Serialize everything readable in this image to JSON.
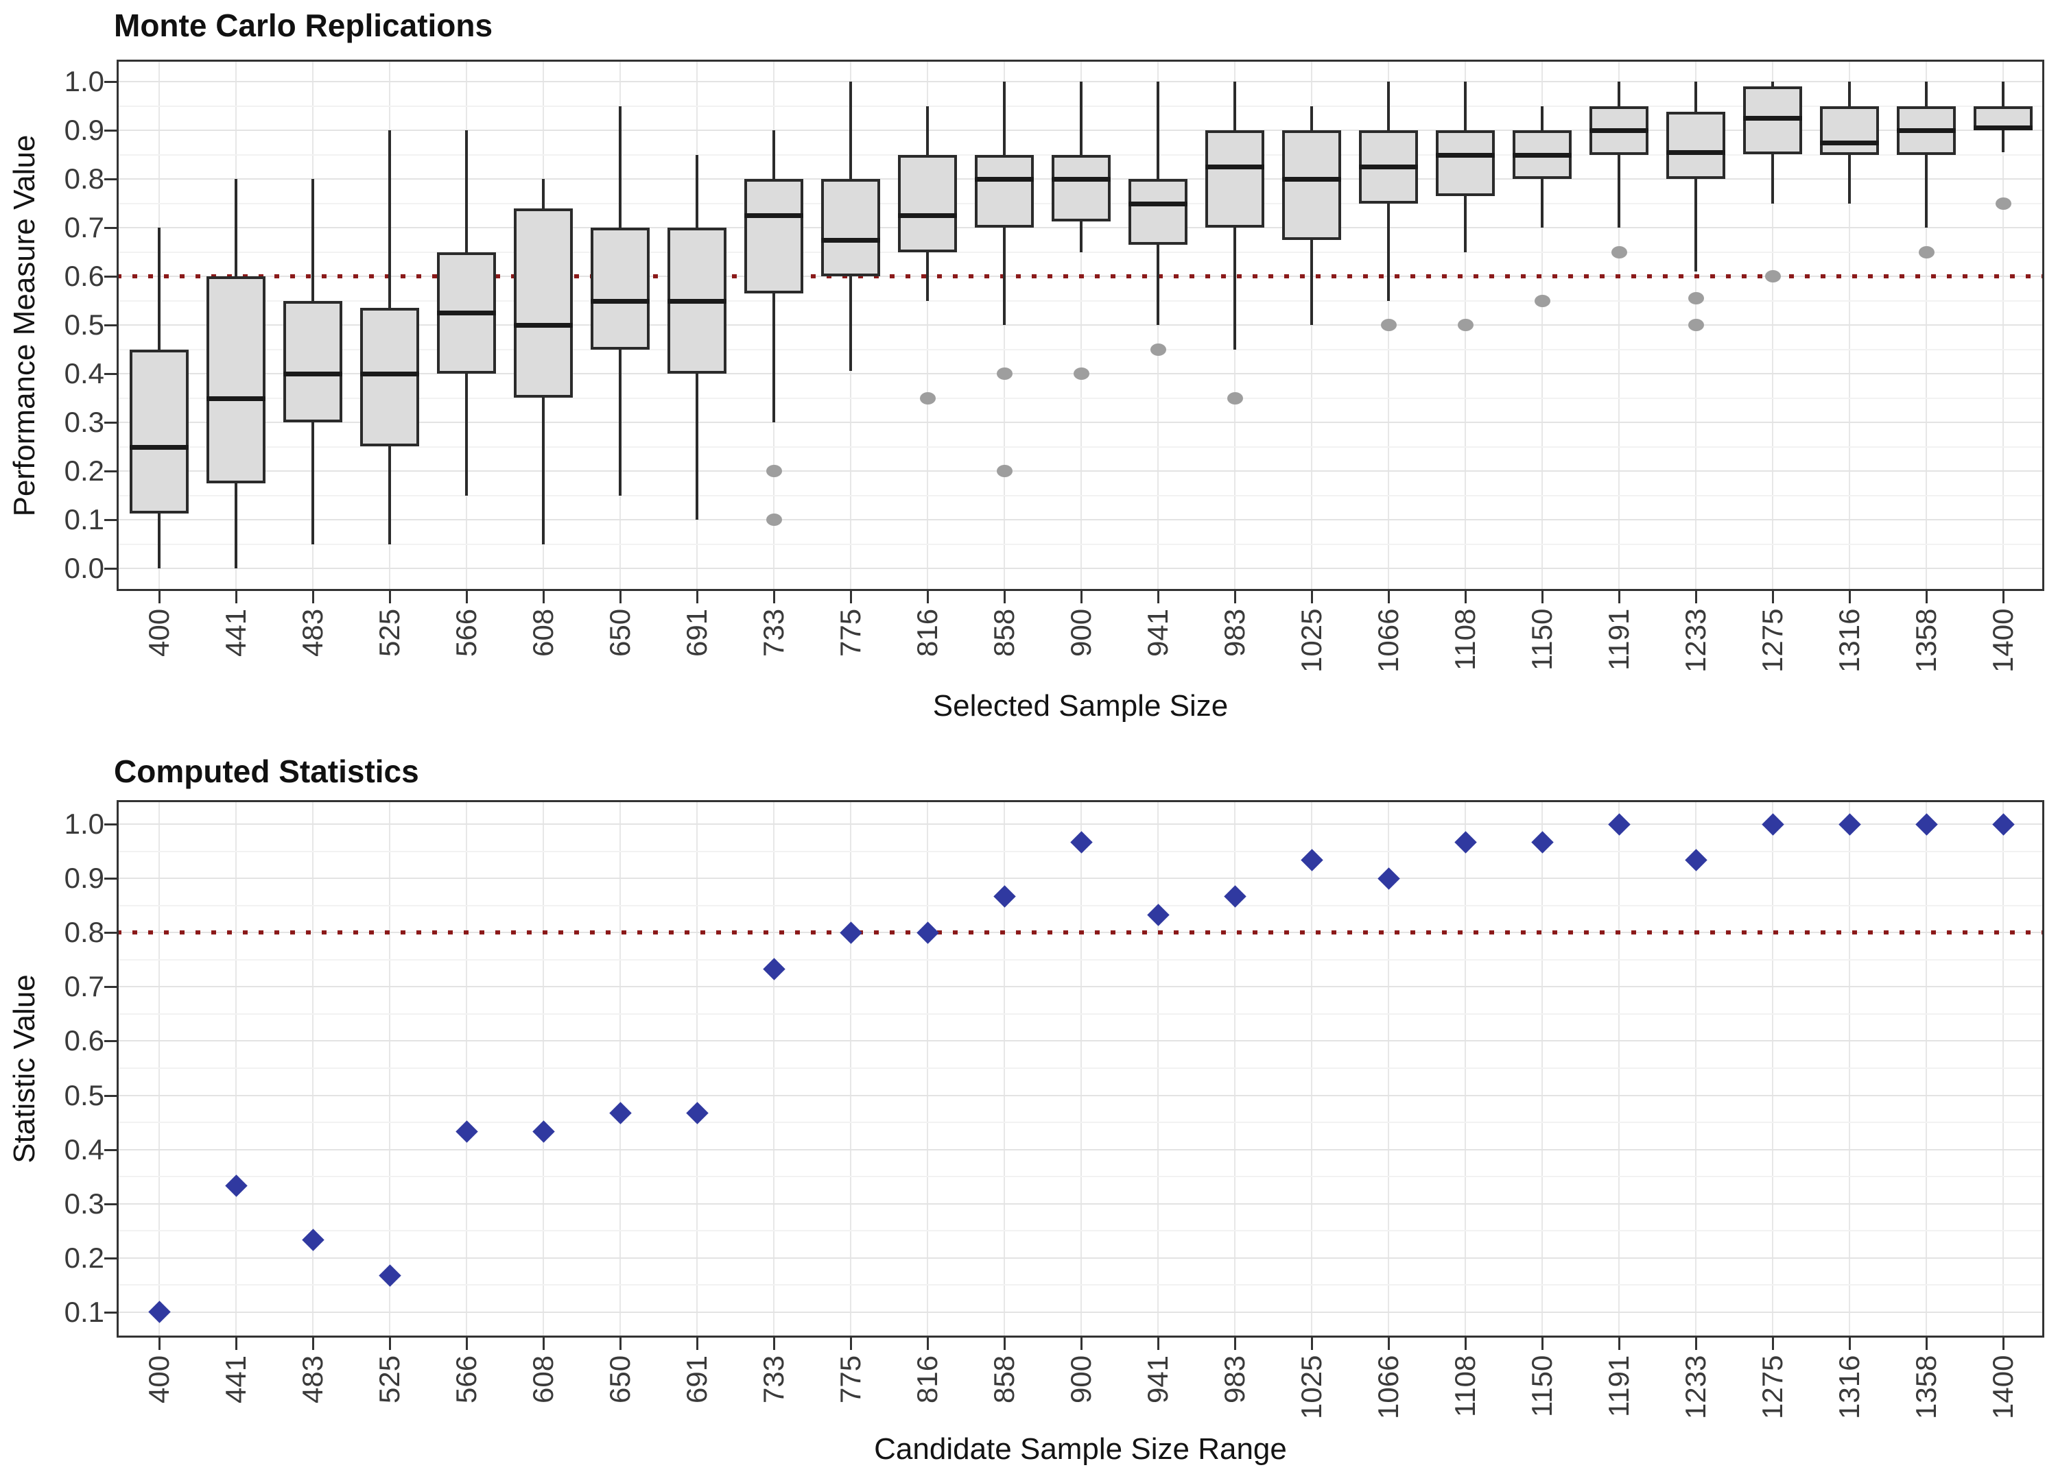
{
  "page": {
    "background": "#FFFFFF"
  },
  "styles": {
    "box_fill": "#DCDCDC",
    "box_border": "#2B2B2B",
    "median_color": "#1A1A1A",
    "outlier_color": "#9E9E9E",
    "reference_line_color": "#8B1A1A",
    "diamond_color": "#3039A0",
    "gridline_major": "#E3E3E3",
    "gridline_minor": "#F2F2F2",
    "panel_border": "#333333"
  },
  "chart_data": [
    {
      "type": "boxplot",
      "title": "Monte Carlo Replications",
      "xlabel": "Selected Sample Size",
      "ylabel": "Performance Measure Value",
      "legend": "none",
      "grid": true,
      "categories": [
        "400",
        "441",
        "483",
        "525",
        "566",
        "608",
        "650",
        "691",
        "733",
        "775",
        "816",
        "858",
        "900",
        "941",
        "983",
        "1025",
        "1066",
        "1108",
        "1150",
        "1191",
        "1233",
        "1275",
        "1316",
        "1358",
        "1400"
      ],
      "y_ticks": [
        "0.0",
        "0.1",
        "0.2",
        "0.3",
        "0.4",
        "0.5",
        "0.6",
        "0.7",
        "0.8",
        "0.9",
        "1.0"
      ],
      "ylim": [
        -0.046,
        1.045
      ],
      "reference_line": {
        "y": 0.6,
        "style": "dotted",
        "color": "#8B1A1A"
      },
      "boxes": [
        {
          "category": "400",
          "whisker_low": 0.0,
          "q1": 0.1125,
          "median": 0.25,
          "q3": 0.45,
          "whisker_high": 0.7,
          "outliers": []
        },
        {
          "category": "441",
          "whisker_low": 0.0,
          "q1": 0.175,
          "median": 0.35,
          "q3": 0.6,
          "whisker_high": 0.8,
          "outliers": []
        },
        {
          "category": "483",
          "whisker_low": 0.05,
          "q1": 0.3,
          "median": 0.4,
          "q3": 0.55,
          "whisker_high": 0.8,
          "outliers": []
        },
        {
          "category": "525",
          "whisker_low": 0.05,
          "q1": 0.25,
          "median": 0.4,
          "q3": 0.535,
          "whisker_high": 0.9,
          "outliers": []
        },
        {
          "category": "566",
          "whisker_low": 0.15,
          "q1": 0.4,
          "median": 0.525,
          "q3": 0.65,
          "whisker_high": 0.9,
          "outliers": []
        },
        {
          "category": "608",
          "whisker_low": 0.05,
          "q1": 0.35,
          "median": 0.5,
          "q3": 0.74,
          "whisker_high": 0.8,
          "outliers": []
        },
        {
          "category": "650",
          "whisker_low": 0.15,
          "q1": 0.45,
          "median": 0.55,
          "q3": 0.7,
          "whisker_high": 0.95,
          "outliers": []
        },
        {
          "category": "691",
          "whisker_low": 0.1,
          "q1": 0.4,
          "median": 0.55,
          "q3": 0.7,
          "whisker_high": 0.85,
          "outliers": []
        },
        {
          "category": "733",
          "whisker_low": 0.3,
          "q1": 0.565,
          "median": 0.725,
          "q3": 0.8,
          "whisker_high": 0.9,
          "outliers": [
            0.2,
            0.1
          ]
        },
        {
          "category": "775",
          "whisker_low": 0.405,
          "q1": 0.6,
          "median": 0.675,
          "q3": 0.8,
          "whisker_high": 1.0,
          "outliers": []
        },
        {
          "category": "816",
          "whisker_low": 0.55,
          "q1": 0.65,
          "median": 0.725,
          "q3": 0.85,
          "whisker_high": 0.95,
          "outliers": [
            0.35
          ]
        },
        {
          "category": "858",
          "whisker_low": 0.5,
          "q1": 0.7,
          "median": 0.8,
          "q3": 0.85,
          "whisker_high": 1.0,
          "outliers": [
            0.4,
            0.2
          ]
        },
        {
          "category": "900",
          "whisker_low": 0.65,
          "q1": 0.7125,
          "median": 0.8,
          "q3": 0.85,
          "whisker_high": 1.0,
          "outliers": [
            0.4
          ]
        },
        {
          "category": "941",
          "whisker_low": 0.5,
          "q1": 0.665,
          "median": 0.75,
          "q3": 0.8,
          "whisker_high": 1.0,
          "outliers": [
            0.45
          ]
        },
        {
          "category": "983",
          "whisker_low": 0.45,
          "q1": 0.7,
          "median": 0.825,
          "q3": 0.9,
          "whisker_high": 1.0,
          "outliers": [
            0.35
          ]
        },
        {
          "category": "1025",
          "whisker_low": 0.5,
          "q1": 0.675,
          "median": 0.8,
          "q3": 0.9,
          "whisker_high": 0.95,
          "outliers": []
        },
        {
          "category": "1066",
          "whisker_low": 0.55,
          "q1": 0.75,
          "median": 0.825,
          "q3": 0.9,
          "whisker_high": 1.0,
          "outliers": [
            0.5
          ]
        },
        {
          "category": "1108",
          "whisker_low": 0.65,
          "q1": 0.765,
          "median": 0.85,
          "q3": 0.9,
          "whisker_high": 1.0,
          "outliers": [
            0.5
          ]
        },
        {
          "category": "1150",
          "whisker_low": 0.7,
          "q1": 0.8,
          "median": 0.85,
          "q3": 0.9,
          "whisker_high": 0.95,
          "outliers": [
            0.55
          ]
        },
        {
          "category": "1191",
          "whisker_low": 0.7,
          "q1": 0.85,
          "median": 0.9,
          "q3": 0.95,
          "whisker_high": 1.0,
          "outliers": [
            0.65
          ]
        },
        {
          "category": "1233",
          "whisker_low": 0.61,
          "q1": 0.8,
          "median": 0.855,
          "q3": 0.9375,
          "whisker_high": 1.0,
          "outliers": [
            0.555,
            0.5
          ]
        },
        {
          "category": "1275",
          "whisker_low": 0.75,
          "q1": 0.85,
          "median": 0.925,
          "q3": 0.99,
          "whisker_high": 1.0,
          "outliers": [
            0.6
          ]
        },
        {
          "category": "1316",
          "whisker_low": 0.75,
          "q1": 0.85,
          "median": 0.875,
          "q3": 0.95,
          "whisker_high": 1.0,
          "outliers": []
        },
        {
          "category": "1358",
          "whisker_low": 0.7,
          "q1": 0.85,
          "median": 0.9,
          "q3": 0.95,
          "whisker_high": 1.0,
          "outliers": [
            0.65
          ]
        },
        {
          "category": "1400",
          "whisker_low": 0.855,
          "q1": 0.9,
          "median": 0.905,
          "q3": 0.95,
          "whisker_high": 1.0,
          "outliers": [
            0.75
          ]
        }
      ]
    },
    {
      "type": "scatter",
      "title": "Computed Statistics",
      "xlabel": "Candidate Sample Size Range",
      "ylabel": "Statistic Value",
      "legend": "none",
      "grid": true,
      "marker": "diamond",
      "marker_color": "#3039A0",
      "categories": [
        "400",
        "441",
        "483",
        "525",
        "566",
        "608",
        "650",
        "691",
        "733",
        "775",
        "816",
        "858",
        "900",
        "941",
        "983",
        "1025",
        "1066",
        "1108",
        "1150",
        "1191",
        "1233",
        "1275",
        "1316",
        "1358",
        "1400"
      ],
      "y_ticks": [
        "0.1",
        "0.2",
        "0.3",
        "0.4",
        "0.5",
        "0.6",
        "0.7",
        "0.8",
        "0.9",
        "1.0"
      ],
      "ylim": [
        0.053,
        1.044
      ],
      "reference_line": {
        "y": 0.8,
        "style": "dotted",
        "color": "#8B1A1A"
      },
      "values": [
        0.1,
        0.333,
        0.233,
        0.167,
        0.433,
        0.433,
        0.467,
        0.467,
        0.733,
        0.8,
        0.8,
        0.867,
        0.967,
        0.833,
        0.867,
        0.933,
        0.9,
        0.967,
        0.967,
        1.0,
        0.933,
        1.0,
        1.0,
        1.0,
        1.0
      ]
    }
  ]
}
